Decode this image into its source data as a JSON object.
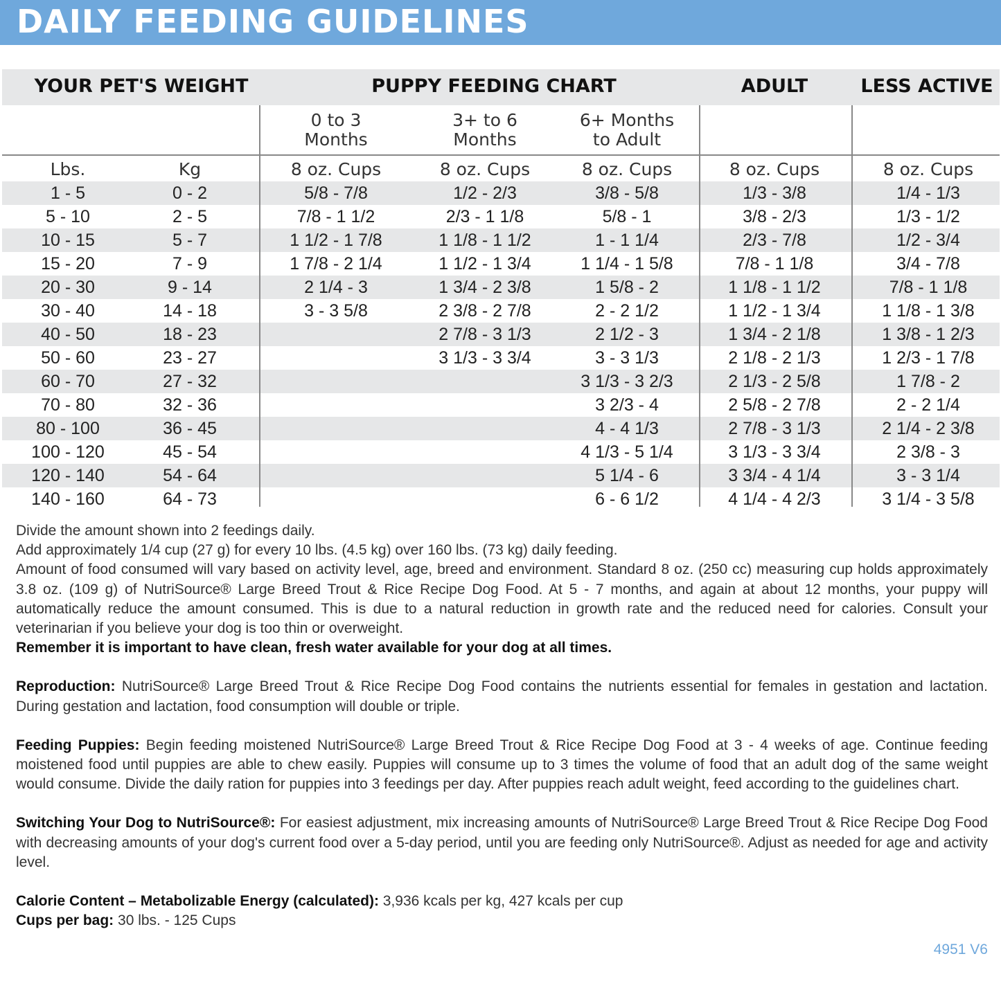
{
  "title": "DAILY FEEDING GUIDELINES",
  "table": {
    "headers": [
      "YOUR PET'S WEIGHT",
      "PUPPY FEEDING CHART",
      "ADULT",
      "LESS ACTIVE"
    ],
    "puppy_subheaders": [
      "0 to 3\nMonths",
      "3+ to 6\nMonths",
      "6+ Months\nto Adult"
    ],
    "units": [
      "Lbs.",
      "Kg",
      "8 oz. Cups",
      "8 oz. Cups",
      "8 oz. Cups",
      "8 oz. Cups",
      "8 oz. Cups"
    ],
    "rows": [
      [
        "1 - 5",
        "0 - 2",
        "5/8 - 7/8",
        "1/2 - 2/3",
        "3/8 - 5/8",
        "1/3 - 3/8",
        "1/4 - 1/3"
      ],
      [
        "5 - 10",
        "2 - 5",
        "7/8 - 1 1/2",
        "2/3 - 1 1/8",
        "5/8 - 1",
        "3/8 - 2/3",
        "1/3 - 1/2"
      ],
      [
        "10 - 15",
        "5 - 7",
        "1 1/2 - 1 7/8",
        "1 1/8 - 1 1/2",
        "1 - 1 1/4",
        "2/3 - 7/8",
        "1/2 - 3/4"
      ],
      [
        "15 - 20",
        "7 - 9",
        "1 7/8 - 2 1/4",
        "1 1/2 - 1 3/4",
        "1 1/4 - 1 5/8",
        "7/8 - 1 1/8",
        "3/4 - 7/8"
      ],
      [
        "20 - 30",
        "9 - 14",
        "2 1/4 - 3",
        "1 3/4 - 2 3/8",
        "1 5/8 - 2",
        "1 1/8 - 1 1/2",
        "7/8 - 1 1/8"
      ],
      [
        "30 - 40",
        "14 - 18",
        "3 - 3 5/8",
        "2 3/8 - 2 7/8",
        "2 - 2 1/2",
        "1 1/2 - 1 3/4",
        "1 1/8 - 1 3/8"
      ],
      [
        "40 - 50",
        "18 - 23",
        "",
        "2 7/8 - 3 1/3",
        "2 1/2 - 3",
        "1 3/4 - 2 1/8",
        "1 3/8 - 1 2/3"
      ],
      [
        "50 - 60",
        "23 - 27",
        "",
        "3 1/3 - 3 3/4",
        "3 - 3 1/3",
        "2 1/8 - 2 1/3",
        "1 2/3 - 1 7/8"
      ],
      [
        "60 - 70",
        "27 - 32",
        "",
        "",
        "3 1/3 - 3 2/3",
        "2 1/3 - 2 5/8",
        "1 7/8 - 2"
      ],
      [
        "70 - 80",
        "32 - 36",
        "",
        "",
        "3 2/3 - 4",
        "2 5/8 - 2 7/8",
        "2 - 2 1/4"
      ],
      [
        "80 - 100",
        "36 - 45",
        "",
        "",
        "4 - 4 1/3",
        "2 7/8 - 3 1/3",
        "2 1/4 - 2 3/8"
      ],
      [
        "100 - 120",
        "45 - 54",
        "",
        "",
        "4 1/3 - 5 1/4",
        "3 1/3 - 3 3/4",
        "2 3/8 - 3"
      ],
      [
        "120 - 140",
        "54 - 64",
        "",
        "",
        "5 1/4 - 6",
        "3 3/4 - 4 1/4",
        "3 - 3 1/4"
      ],
      [
        "140 - 160",
        "64 - 73",
        "",
        "",
        "6 - 6 1/2",
        "4 1/4 - 4 2/3",
        "3 1/4 - 3 5/8"
      ]
    ]
  },
  "notes": {
    "line1": "Divide the amount shown into 2 feedings daily.",
    "line2": "Add approximately 1/4 cup (27 g) for every 10 lbs. (4.5 kg) over 160 lbs. (73 kg) daily feeding.",
    "line3": "Amount of food consumed will vary based on activity level, age, breed and environment. Standard 8 oz. (250 cc) measuring cup holds approximately 3.8 oz. (109 g) of NutriSource® Large Breed Trout & Rice Recipe Dog Food. At 5 - 7 months, and again at about 12 months, your puppy will automatically reduce the amount consumed. This is due to a natural reduction in growth rate and the reduced need for calories. Consult your veterinarian if you believe your dog is too thin or overweight.",
    "water": "Remember it is important to have clean, fresh water available for your dog at all times.",
    "reproduction_label": "Reproduction:",
    "reproduction": " NutriSource® Large Breed Trout & Rice Recipe Dog Food contains the nutrients essential for females in gestation and lactation. During gestation and lactation, food consumption will double or triple.",
    "puppies_label": "Feeding Puppies:",
    "puppies": " Begin feeding moistened NutriSource® Large Breed Trout & Rice Recipe Dog Food at 3 - 4 weeks of age. Continue feeding moistened food until puppies are able to chew easily. Puppies will consume up to 3 times the volume of food that an adult dog of the same weight would consume. Divide the daily ration for puppies into 3 feedings per day. After puppies reach adult weight, feed according to the guidelines chart.",
    "switching_label": "Switching Your Dog to NutriSource®:",
    "switching": " For easiest adjustment, mix increasing amounts of NutriSource® Large Breed Trout & Rice Recipe Dog Food with decreasing amounts of your dog's current food over a 5-day period, until you are feeding only NutriSource®. Adjust as needed for age and activity level.",
    "calorie_label": "Calorie Content – Metabolizable Energy (calculated):",
    "calorie": " 3,936 kcals per kg, 427 kcals per cup",
    "cups_label": "Cups per bag:",
    "cups": "  30 lbs. -  125 Cups"
  },
  "code": "4951 V6",
  "colors": {
    "banner": "#6fa8dc",
    "shade": "#e6e7e8"
  }
}
